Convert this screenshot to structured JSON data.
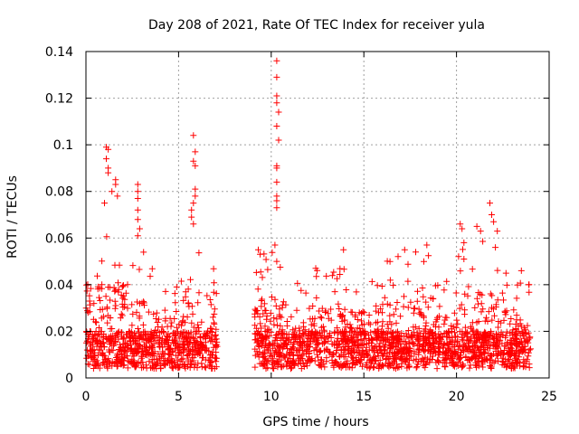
{
  "chart_data": {
    "type": "scatter",
    "title": "Day 208 of 2021, Rate Of TEC Index for receiver yula",
    "xlabel": "GPS time / hours",
    "ylabel": "ROTI / TECUs",
    "xlim": [
      0,
      25
    ],
    "ylim": [
      0,
      0.14
    ],
    "x_ticks": [
      "0",
      "5",
      "10",
      "15",
      "20",
      "25"
    ],
    "y_ticks": [
      "0",
      "0.02",
      "0.04",
      "0.06",
      "0.08",
      "0.1",
      "0.12",
      "0.14"
    ],
    "grid": true,
    "marker": "+",
    "marker_color": "#ff0000",
    "gaps": [
      [
        7.1,
        9.1
      ]
    ],
    "series": [
      {
        "values_summary": "dense band 0.005–0.03 ROTI across 0–7.1 h and 9.1–24 h",
        "peaks": [
          {
            "x": 1.1,
            "y": 0.099
          },
          {
            "x": 1.2,
            "y": 0.098
          },
          {
            "x": 1.1,
            "y": 0.094
          },
          {
            "x": 1.2,
            "y": 0.09
          },
          {
            "x": 1.2,
            "y": 0.088
          },
          {
            "x": 1.6,
            "y": 0.085
          },
          {
            "x": 1.6,
            "y": 0.083
          },
          {
            "x": 1.4,
            "y": 0.08
          },
          {
            "x": 1.7,
            "y": 0.078
          },
          {
            "x": 1.0,
            "y": 0.075
          },
          {
            "x": 2.8,
            "y": 0.083
          },
          {
            "x": 2.8,
            "y": 0.08
          },
          {
            "x": 2.8,
            "y": 0.077
          },
          {
            "x": 2.8,
            "y": 0.072
          },
          {
            "x": 2.8,
            "y": 0.068
          },
          {
            "x": 2.9,
            "y": 0.064
          },
          {
            "x": 2.8,
            "y": 0.061
          },
          {
            "x": 5.8,
            "y": 0.104
          },
          {
            "x": 5.9,
            "y": 0.097
          },
          {
            "x": 5.8,
            "y": 0.093
          },
          {
            "x": 5.9,
            "y": 0.091
          },
          {
            "x": 5.9,
            "y": 0.081
          },
          {
            "x": 5.9,
            "y": 0.078
          },
          {
            "x": 5.8,
            "y": 0.075
          },
          {
            "x": 5.7,
            "y": 0.072
          },
          {
            "x": 5.7,
            "y": 0.069
          },
          {
            "x": 5.8,
            "y": 0.066
          },
          {
            "x": 10.3,
            "y": 0.136
          },
          {
            "x": 10.3,
            "y": 0.129
          },
          {
            "x": 10.3,
            "y": 0.121
          },
          {
            "x": 10.3,
            "y": 0.118
          },
          {
            "x": 10.4,
            "y": 0.114
          },
          {
            "x": 10.3,
            "y": 0.108
          },
          {
            "x": 10.4,
            "y": 0.102
          },
          {
            "x": 10.3,
            "y": 0.091
          },
          {
            "x": 10.3,
            "y": 0.09
          },
          {
            "x": 10.3,
            "y": 0.084
          },
          {
            "x": 10.3,
            "y": 0.078
          },
          {
            "x": 10.3,
            "y": 0.076
          },
          {
            "x": 10.3,
            "y": 0.073
          },
          {
            "x": 10.2,
            "y": 0.057
          },
          {
            "x": 10.3,
            "y": 0.05
          },
          {
            "x": 9.3,
            "y": 0.055
          },
          {
            "x": 9.4,
            "y": 0.053
          },
          {
            "x": 13.9,
            "y": 0.055
          },
          {
            "x": 17.2,
            "y": 0.055
          },
          {
            "x": 17.8,
            "y": 0.054
          },
          {
            "x": 18.4,
            "y": 0.057
          },
          {
            "x": 20.2,
            "y": 0.066
          },
          {
            "x": 20.3,
            "y": 0.064
          },
          {
            "x": 20.4,
            "y": 0.058
          },
          {
            "x": 20.4,
            "y": 0.051
          },
          {
            "x": 21.1,
            "y": 0.065
          },
          {
            "x": 21.3,
            "y": 0.063
          },
          {
            "x": 21.8,
            "y": 0.075
          },
          {
            "x": 21.9,
            "y": 0.07
          },
          {
            "x": 22.0,
            "y": 0.067
          },
          {
            "x": 22.2,
            "y": 0.063
          },
          {
            "x": 22.1,
            "y": 0.056
          },
          {
            "x": 23.5,
            "y": 0.046
          },
          {
            "x": 23.9,
            "y": 0.04
          }
        ]
      }
    ]
  }
}
